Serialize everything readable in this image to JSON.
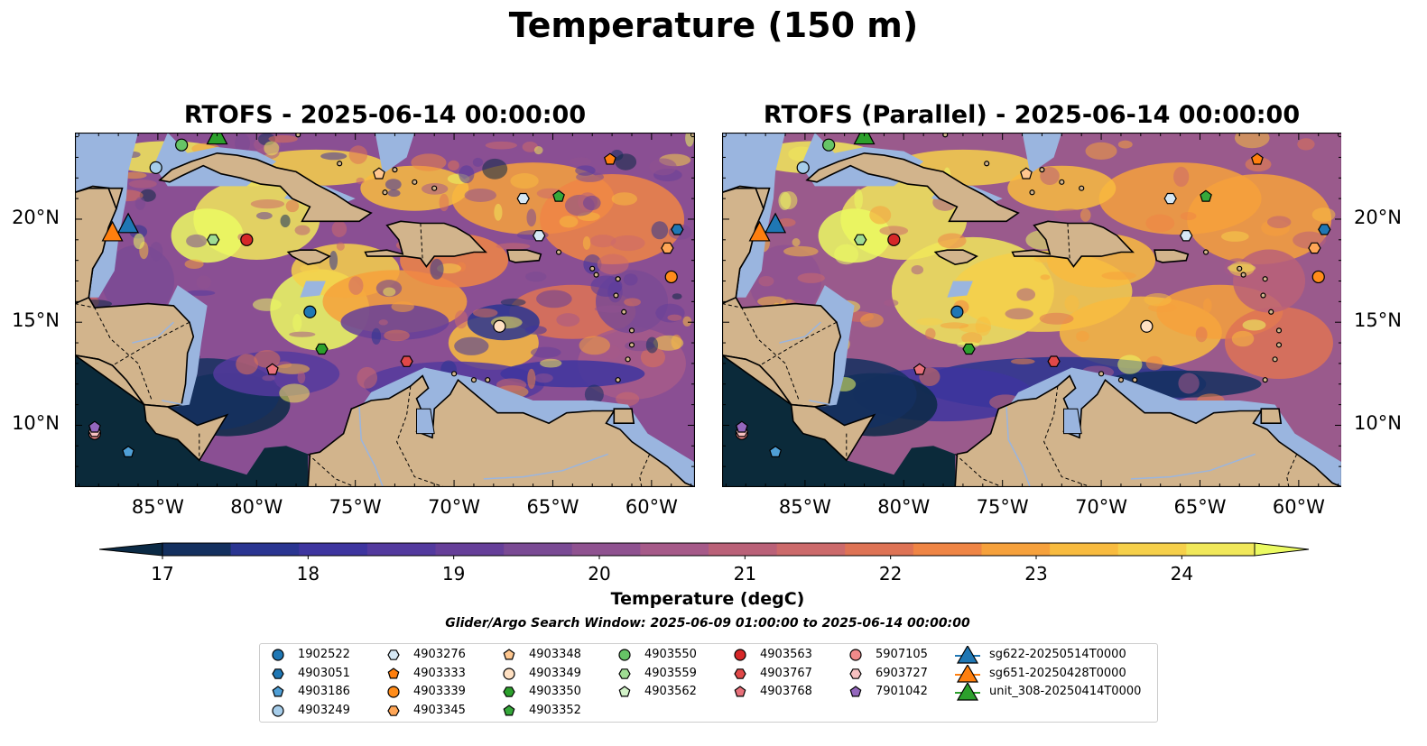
{
  "figure": {
    "suptitle": "Temperature (150 m)"
  },
  "panels": [
    {
      "title": "RTOFS - 2025-06-14 00:00:00"
    },
    {
      "title": "RTOFS (Parallel) - 2025-06-14 00:00:00"
    }
  ],
  "axes": {
    "lon_labels": [
      "85°W",
      "80°W",
      "75°W",
      "70°W",
      "65°W",
      "60°W"
    ],
    "lat_labels": [
      "20°N",
      "15°N",
      "10°N"
    ],
    "lon_values": [
      -85,
      -80,
      -75,
      -70,
      -65,
      -60
    ],
    "lat_values": [
      20,
      15,
      10
    ]
  },
  "colorbar": {
    "label": "Temperature (degC)",
    "ticks": [
      "17",
      "18",
      "19",
      "20",
      "21",
      "22",
      "23",
      "24"
    ],
    "range": [
      17,
      24.5
    ],
    "colors": [
      "#0b2a45",
      "#14305f",
      "#2a3591",
      "#3e359f",
      "#533a9e",
      "#663f99",
      "#7a4a94",
      "#8f5290",
      "#a65a89",
      "#ba6178",
      "#cc6a6b",
      "#de7355",
      "#ef8545",
      "#f6a13c",
      "#f8bb3f",
      "#f6d04a",
      "#f1e85a",
      "#ebfa62"
    ]
  },
  "search_window": "Glider/Argo Search Window: 2025-06-09 01:00:00 to 2025-06-14 00:00:00",
  "map_colors": {
    "land": "#d2b48c",
    "shelf": "#9ab5df",
    "deep_dark": "#0b2a3a"
  },
  "legend": [
    {
      "label": "1902522",
      "shape": "circle",
      "color": "#1f77b4"
    },
    {
      "label": "4903051",
      "shape": "hexagon",
      "color": "#1f77b4"
    },
    {
      "label": "4903186",
      "shape": "pentagon",
      "color": "#4f9fd6"
    },
    {
      "label": "4903249",
      "shape": "circle",
      "color": "#a6cdea"
    },
    {
      "label": "4903276",
      "shape": "hexagon",
      "color": "#d6e8f5"
    },
    {
      "label": "4903333",
      "shape": "pentagon",
      "color": "#ff7f0e"
    },
    {
      "label": "4903339",
      "shape": "circle",
      "color": "#ff8c1a"
    },
    {
      "label": "4903345",
      "shape": "hexagon",
      "color": "#ffa656"
    },
    {
      "label": "4903348",
      "shape": "pentagon",
      "color": "#ffc78f"
    },
    {
      "label": "4903349",
      "shape": "circle",
      "color": "#ffe0c2"
    },
    {
      "label": "4903350",
      "shape": "hexagon",
      "color": "#2ca02c"
    },
    {
      "label": "4903352",
      "shape": "pentagon",
      "color": "#35a83a"
    },
    {
      "label": "4903550",
      "shape": "circle",
      "color": "#66c466"
    },
    {
      "label": "4903559",
      "shape": "hexagon",
      "color": "#9fdc93"
    },
    {
      "label": "4903562",
      "shape": "pentagon",
      "color": "#d2f2c8"
    },
    {
      "label": "4903563",
      "shape": "circle",
      "color": "#d62728"
    },
    {
      "label": "4903767",
      "shape": "hexagon",
      "color": "#e04848"
    },
    {
      "label": "4903768",
      "shape": "pentagon",
      "color": "#e8707a"
    },
    {
      "label": "5907105",
      "shape": "circle",
      "color": "#f08a8a"
    },
    {
      "label": "6903727",
      "shape": "hexagon",
      "color": "#f7c1c1"
    },
    {
      "label": "7901042",
      "shape": "pentagon",
      "color": "#9467bd"
    },
    {
      "label": "sg622-20250514T0000",
      "shape": "triangle-line",
      "color": "#1f77b4"
    },
    {
      "label": "sg651-20250428T0000",
      "shape": "triangle-line",
      "color": "#ff7f0e"
    },
    {
      "label": "unit_308-20250414T0000",
      "shape": "triangle-line",
      "color": "#2ca02c"
    }
  ],
  "markers": [
    {
      "id": "4903051",
      "lon": -58.7,
      "lat": 19.5
    },
    {
      "id": "4903186",
      "lon": -86.5,
      "lat": 8.7
    },
    {
      "id": "4903249",
      "lon": -85.1,
      "lat": 22.5
    },
    {
      "id": "4903276",
      "lon": -65.7,
      "lat": 19.2
    },
    {
      "id": "4903276",
      "lon": -66.5,
      "lat": 21.0
    },
    {
      "id": "4903333",
      "lon": -62.1,
      "lat": 22.9
    },
    {
      "id": "4903339",
      "lon": -59.0,
      "lat": 17.2
    },
    {
      "id": "4903345",
      "lon": -59.2,
      "lat": 18.6
    },
    {
      "id": "4903348",
      "lon": -73.8,
      "lat": 22.2
    },
    {
      "id": "4903349",
      "lon": -67.7,
      "lat": 14.8
    },
    {
      "id": "4903350",
      "lon": -76.7,
      "lat": 13.7
    },
    {
      "id": "4903352",
      "lon": -64.7,
      "lat": 21.1
    },
    {
      "id": "4903550",
      "lon": -83.8,
      "lat": 23.6
    },
    {
      "id": "4903559",
      "lon": -82.2,
      "lat": 19.0
    },
    {
      "id": "4903563",
      "lon": -80.5,
      "lat": 19.0
    },
    {
      "id": "4903767",
      "lon": -72.4,
      "lat": 13.1
    },
    {
      "id": "4903768",
      "lon": -79.2,
      "lat": 12.7
    },
    {
      "id": "5907105",
      "lon": -88.2,
      "lat": 9.6
    },
    {
      "id": "6903727",
      "lon": -88.2,
      "lat": 9.7
    },
    {
      "id": "7901042",
      "lon": -88.2,
      "lat": 9.9
    },
    {
      "id": "1902522",
      "lon": -77.3,
      "lat": 15.5
    },
    {
      "id": "sg622-20250514T0000",
      "lon": -86.5,
      "lat": 19.7
    },
    {
      "id": "sg651-20250428T0000",
      "lon": -87.3,
      "lat": 19.3
    },
    {
      "id": "unit_308-20250414T0000",
      "lon": -82.0,
      "lat": 24.0
    }
  ]
}
